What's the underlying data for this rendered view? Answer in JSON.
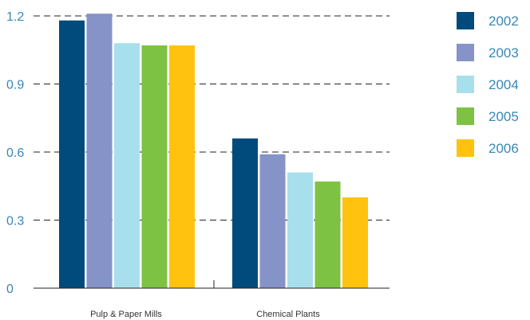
{
  "chart_data": {
    "type": "bar",
    "title": "",
    "xlabel": "",
    "ylabel": "",
    "categories": [
      "Pulp & Paper Mills",
      "Chemical Plants"
    ],
    "series": [
      {
        "name": "2002",
        "color": "#004b7c",
        "values": [
          1.18,
          0.66
        ]
      },
      {
        "name": "2003",
        "color": "#8593c8",
        "values": [
          1.21,
          0.59
        ]
      },
      {
        "name": "2004",
        "color": "#a8dfec",
        "values": [
          1.08,
          0.51
        ]
      },
      {
        "name": "2005",
        "color": "#7dc242",
        "values": [
          1.07,
          0.47
        ]
      },
      {
        "name": "2006",
        "color": "#ffc20e",
        "values": [
          1.07,
          0.4
        ]
      }
    ],
    "ylim": [
      0,
      1.2
    ],
    "yticks": [
      "0",
      "0.3",
      "0.6",
      "0.9",
      "1.2"
    ],
    "grid": "dashed horizontal",
    "legend_position": "right"
  }
}
